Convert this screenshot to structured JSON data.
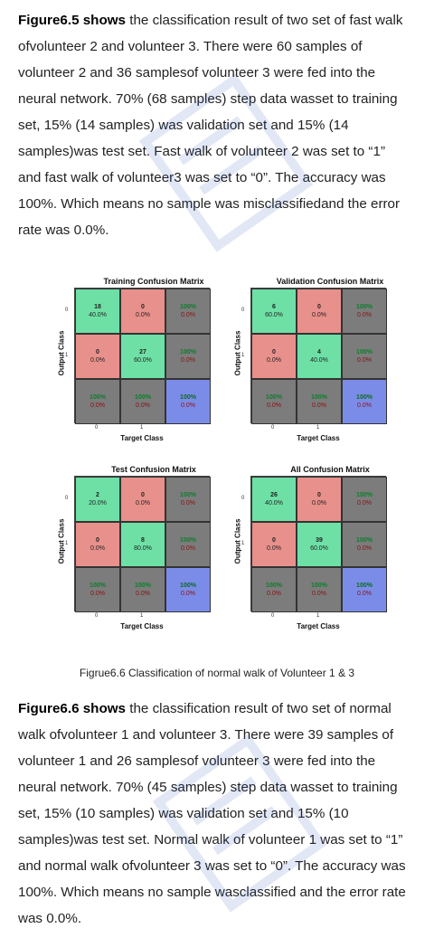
{
  "paragraph1": {
    "lead": "Figure6.5 shows",
    "lines": [
      " the classification result of two set of fast walk",
      "ofvolunteer 2 and volunteer 3. There were 60 samples of",
      "volunteer 2 and 36 samplesof volunteer 3 were fed into the",
      "neural network. 70% (68 samples) step data wasset to training",
      "set, 15% (14 samples) was validation set and 15% (14",
      "samples)was test set. Fast walk of volunteer 2 was set to “1”",
      "and fast walk of volunteer3 was set to “0”. The accuracy was",
      "100%. Which means no sample was misclassifiedand the error",
      "rate was 0.0%."
    ]
  },
  "matrices": [
    {
      "title": "Training Confusion Matrix",
      "cells": [
        [
          "18",
          "40.0%"
        ],
        [
          "0",
          "0.0%"
        ],
        [
          "100%",
          "0.0%"
        ],
        [
          "0",
          "0.0%"
        ],
        [
          "27",
          "60.0%"
        ],
        [
          "100%",
          "0.0%"
        ],
        [
          "100%",
          "0.0%"
        ],
        [
          "100%",
          "0.0%"
        ],
        [
          "100%",
          "0.0%"
        ]
      ],
      "xlabel": "Target Class",
      "ylabel": "Output Class",
      "ticks": [
        "0",
        "1"
      ]
    },
    {
      "title": "Validation Confusion Matrix",
      "cells": [
        [
          "6",
          "60.0%"
        ],
        [
          "0",
          "0.0%"
        ],
        [
          "100%",
          "0.0%"
        ],
        [
          "0",
          "0.0%"
        ],
        [
          "4",
          "40.0%"
        ],
        [
          "100%",
          "0.0%"
        ],
        [
          "100%",
          "0.0%"
        ],
        [
          "100%",
          "0.0%"
        ],
        [
          "100%",
          "0.0%"
        ]
      ],
      "xlabel": "Target Class",
      "ylabel": "Output Class",
      "ticks": [
        "0",
        "1"
      ]
    },
    {
      "title": "Test Confusion Matrix",
      "cells": [
        [
          "2",
          "20.0%"
        ],
        [
          "0",
          "0.0%"
        ],
        [
          "100%",
          "0.0%"
        ],
        [
          "0",
          "0.0%"
        ],
        [
          "8",
          "80.0%"
        ],
        [
          "100%",
          "0.0%"
        ],
        [
          "100%",
          "0.0%"
        ],
        [
          "100%",
          "0.0%"
        ],
        [
          "100%",
          "0.0%"
        ]
      ],
      "xlabel": "Target Class",
      "ylabel": "Output Class",
      "ticks": [
        "0",
        "1"
      ]
    },
    {
      "title": "All Confusion Matrix",
      "cells": [
        [
          "26",
          "40.0%"
        ],
        [
          "0",
          "0.0%"
        ],
        [
          "100%",
          "0.0%"
        ],
        [
          "0",
          "0.0%"
        ],
        [
          "39",
          "60.0%"
        ],
        [
          "100%",
          "0.0%"
        ],
        [
          "100%",
          "0.0%"
        ],
        [
          "100%",
          "0.0%"
        ],
        [
          "100%",
          "0.0%"
        ]
      ],
      "xlabel": "Target Class",
      "ylabel": "Output Class",
      "ticks": [
        "0",
        "1"
      ]
    }
  ],
  "caption": "Figrue6.6 Classification of normal walk of Volunteer 1 & 3",
  "paragraph2": {
    "lead": "Figure6.6 shows",
    "lines": [
      " the classification result of two set of normal",
      "walk ofvolunteer 1 and volunteer 3. There were 39 samples of",
      "volunteer 1 and 26 samplesof volunteer 3 were fed into the",
      "neural network. 70% (45 samples) step data wasset to training",
      "set, 15% (10 samples) was validation set and 15% (10",
      "samples)was test set. Normal walk of volunteer 1 was set to “1”",
      "and normal walk ofvolunteer 3 was set to “0”. The accuracy was",
      "100%. Which means no sample wasclassified and the error rate",
      "was 0.0%."
    ]
  },
  "colors": {
    "correct": "#6ee0a6",
    "incorrect": "#e8908b",
    "summary": "#7c7c7c",
    "overall": "#7b8ce8"
  }
}
